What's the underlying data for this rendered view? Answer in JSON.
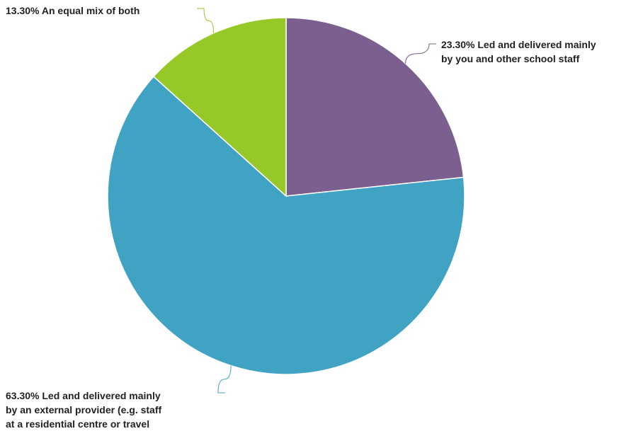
{
  "chart_data": {
    "type": "pie",
    "title": "",
    "slices": [
      {
        "value": 23.3,
        "label_lines": [
          "23.30% Led and delivered mainly",
          "by you and other school staff"
        ],
        "color": "#7b5f8e"
      },
      {
        "value": 63.3,
        "label_lines": [
          "63.30% Led and delivered mainly",
          "by an external provider (e.g. staff",
          "at a residential centre or travel"
        ],
        "color": "#40a3c3"
      },
      {
        "value": 13.3,
        "label_lines": [
          "13.30% An equal mix of both"
        ],
        "color": "#96c828"
      }
    ],
    "start_angle_deg": 0,
    "direction": "clockwise",
    "legend": "none",
    "slice_stroke": "#ffffff"
  }
}
